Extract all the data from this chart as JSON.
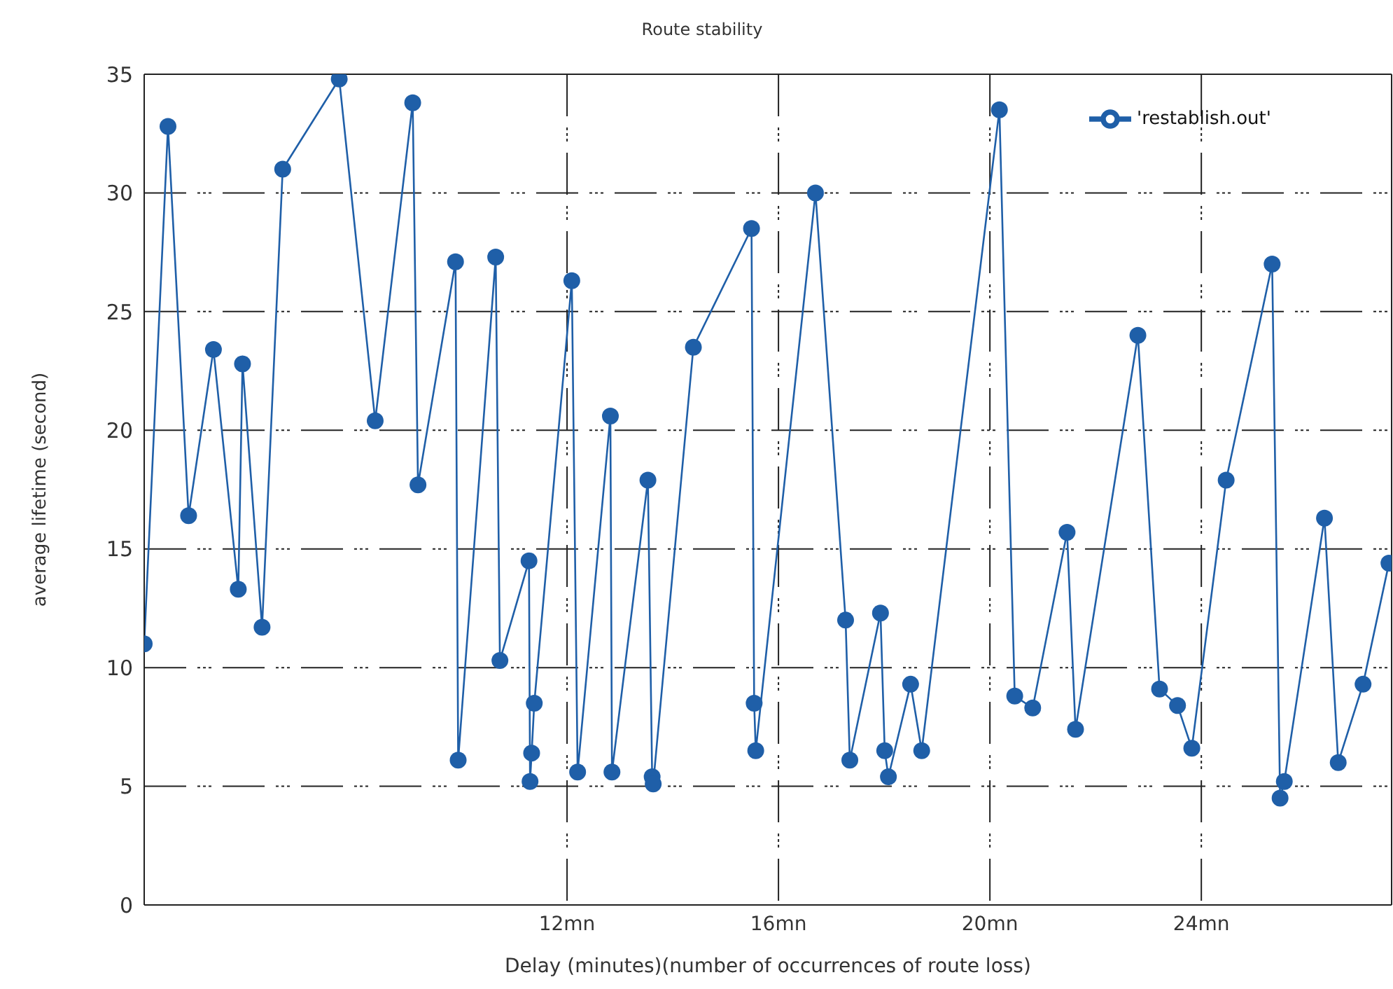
{
  "chart_data": {
    "type": "line",
    "title": "Route stability",
    "xlabel": "Delay (minutes)(number of occurrences of route loss)",
    "ylabel": "average lifetime (second)",
    "x": [
      4.0,
      4.45,
      4.84,
      5.31,
      5.78,
      5.86,
      6.23,
      6.62,
      7.69,
      8.37,
      9.08,
      9.18,
      9.89,
      9.94,
      10.65,
      10.73,
      11.28,
      11.3,
      11.33,
      11.38,
      12.09,
      12.2,
      12.82,
      12.85,
      13.53,
      13.61,
      13.63,
      14.39,
      15.49,
      15.54,
      15.57,
      16.7,
      17.27,
      17.35,
      17.93,
      18.01,
      18.08,
      18.5,
      18.71,
      20.18,
      20.47,
      20.81,
      21.46,
      21.62,
      22.8,
      23.21,
      23.55,
      23.82,
      24.47,
      25.34,
      25.49,
      25.57,
      26.33,
      26.59,
      27.06,
      27.55
    ],
    "series": [
      {
        "name": "'restablish.out'",
        "color": "#1f5fa8",
        "values": [
          11.0,
          32.8,
          16.4,
          23.4,
          13.3,
          22.8,
          11.7,
          31.0,
          34.8,
          20.4,
          33.8,
          17.7,
          27.1,
          6.1,
          27.3,
          10.3,
          14.5,
          5.2,
          6.4,
          8.5,
          26.3,
          5.6,
          20.6,
          5.6,
          17.9,
          5.4,
          5.1,
          23.5,
          28.5,
          8.5,
          6.5,
          30.0,
          12.0,
          6.1,
          12.3,
          6.5,
          5.4,
          9.3,
          6.5,
          33.5,
          8.8,
          8.3,
          15.7,
          7.4,
          24.0,
          9.1,
          8.4,
          6.6,
          17.9,
          27.0,
          4.5,
          5.2,
          16.3,
          6.0,
          9.3,
          14.4
        ]
      }
    ],
    "xlim": [
      4,
      27.6
    ],
    "xticks": [
      {
        "value": 12,
        "label": "12mn"
      },
      {
        "value": 16,
        "label": "16mn"
      },
      {
        "value": 20,
        "label": "20mn"
      },
      {
        "value": 24,
        "label": "24mn"
      }
    ],
    "ylim": [
      0,
      35
    ],
    "yticks": [
      0,
      5,
      10,
      15,
      20,
      25,
      30,
      35
    ],
    "grid": true,
    "legend": "top right",
    "marker": "circle",
    "line_style": "solid"
  }
}
